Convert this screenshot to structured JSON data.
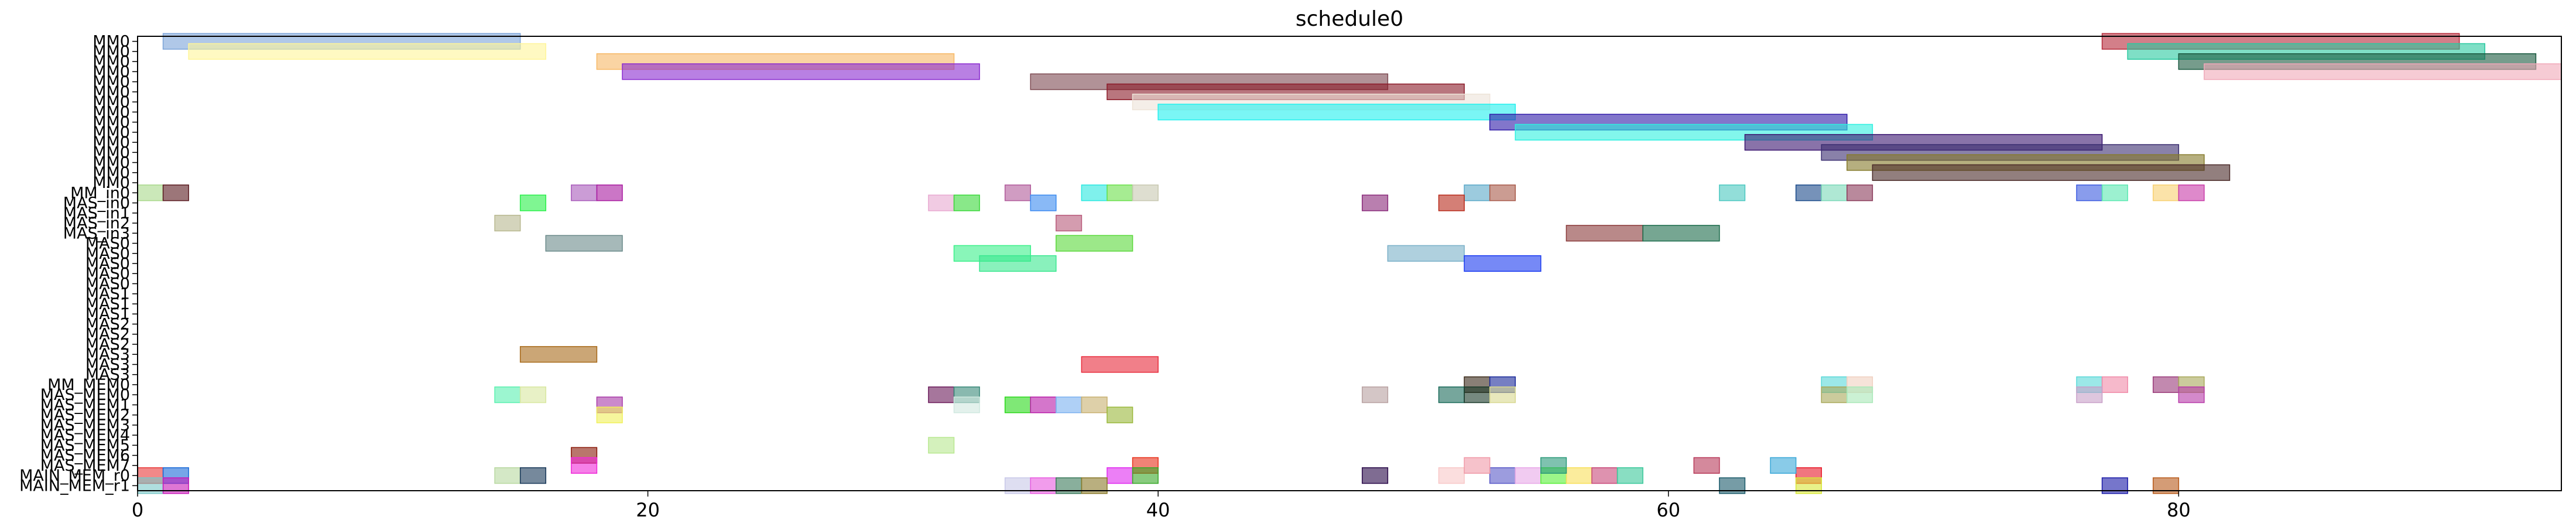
{
  "chart_data": {
    "type": "gantt",
    "title": "schedule0",
    "xlim": [
      0,
      95
    ],
    "xticks": [
      0,
      20,
      40,
      60,
      80
    ],
    "grid": false,
    "rows": [
      "MM0",
      "MM0",
      "MM0",
      "MM0",
      "MM0",
      "MM0",
      "MM0",
      "MM0",
      "MM0",
      "MM0",
      "MM0",
      "MM0",
      "MM0",
      "MM0",
      "MM0",
      "MM_in0",
      "MAS_in0",
      "MAS_in1",
      "MAS_in2",
      "MAS_in3",
      "MAS0",
      "MAS0",
      "MAS0",
      "MAS0",
      "MAS0",
      "MAS1",
      "MAS1",
      "MAS1",
      "MAS2",
      "MAS2",
      "MAS2",
      "MAS3",
      "MAS3",
      "MAS3",
      "MM_MEM0",
      "MAS_MEM0",
      "MAS_MEM1",
      "MAS_MEM2",
      "MAS_MEM3",
      "MAS_MEM4",
      "MAS_MEM5",
      "MAS_MEM6",
      "MAS_MEM7",
      "MAIN_MEM_r0",
      "MAIN_MEM_r1"
    ],
    "tasks": [
      {
        "row": 0,
        "start": 1,
        "end": 15,
        "color": "#7ba3d8"
      },
      {
        "row": 1,
        "start": 2,
        "end": 16,
        "color": "#fff59a"
      },
      {
        "row": 2,
        "start": 18,
        "end": 32,
        "color": "#f7b866"
      },
      {
        "row": 3,
        "start": 19,
        "end": 33,
        "color": "#8a2bd0"
      },
      {
        "row": 4,
        "start": 35,
        "end": 49,
        "color": "#7d4a52"
      },
      {
        "row": 5,
        "start": 38,
        "end": 52,
        "color": "#8b1a28"
      },
      {
        "row": 6,
        "start": 39,
        "end": 53,
        "color": "#ede3d8"
      },
      {
        "row": 7,
        "start": 40,
        "end": 54,
        "color": "#22f0ee"
      },
      {
        "row": 8,
        "start": 53,
        "end": 67,
        "color": "#2f1aa8"
      },
      {
        "row": 9,
        "start": 54,
        "end": 68,
        "color": "#2ef0e0"
      },
      {
        "row": 10,
        "start": 63,
        "end": 77,
        "color": "#3a1670"
      },
      {
        "row": 11,
        "start": 66,
        "end": 80,
        "color": "#3a2d70"
      },
      {
        "row": 12,
        "start": 67,
        "end": 81,
        "color": "#857a2a"
      },
      {
        "row": 13,
        "start": 68,
        "end": 82,
        "color": "#4a2a28"
      },
      {
        "row": 0,
        "start": 77,
        "end": 91,
        "color": "#b52a3a"
      },
      {
        "row": 1,
        "start": 78,
        "end": 92,
        "color": "#2ac9a0"
      },
      {
        "row": 2,
        "start": 80,
        "end": 94,
        "color": "#1a5a40"
      },
      {
        "row": 3,
        "start": 81,
        "end": 95,
        "color": "#f0a8b8"
      },
      {
        "row": 15,
        "start": 0,
        "end": 1,
        "color": "#a8d88a"
      },
      {
        "row": 15,
        "start": 1,
        "end": 2,
        "color": "#5a1a20"
      },
      {
        "row": 15,
        "start": 17,
        "end": 18,
        "color": "#a85aba"
      },
      {
        "row": 15,
        "start": 18,
        "end": 19,
        "color": "#a81aa0"
      },
      {
        "row": 15,
        "start": 34,
        "end": 35,
        "color": "#b05a9a"
      },
      {
        "row": 15,
        "start": 37,
        "end": 38,
        "color": "#2ae8e0"
      },
      {
        "row": 15,
        "start": 38,
        "end": 39,
        "color": "#6ae04a"
      },
      {
        "row": 15,
        "start": 39,
        "end": 40,
        "color": "#c8c8b0"
      },
      {
        "row": 15,
        "start": 52,
        "end": 53,
        "color": "#5aa8c8"
      },
      {
        "row": 15,
        "start": 53,
        "end": 54,
        "color": "#a85a4a"
      },
      {
        "row": 15,
        "start": 62,
        "end": 63,
        "color": "#4ac8c0"
      },
      {
        "row": 15,
        "start": 65,
        "end": 66,
        "color": "#1a4a8a"
      },
      {
        "row": 15,
        "start": 66,
        "end": 67,
        "color": "#7ad8b8"
      },
      {
        "row": 15,
        "start": 67,
        "end": 68,
        "color": "#8a3a5a"
      },
      {
        "row": 15,
        "start": 76,
        "end": 77,
        "color": "#3a5ae0"
      },
      {
        "row": 15,
        "start": 77,
        "end": 78,
        "color": "#5ae8b0"
      },
      {
        "row": 15,
        "start": 79,
        "end": 80,
        "color": "#f8d070"
      },
      {
        "row": 15,
        "start": 80,
        "end": 81,
        "color": "#c83aa8"
      },
      {
        "row": 16,
        "start": 15,
        "end": 16,
        "color": "#2af04a"
      },
      {
        "row": 16,
        "start": 31,
        "end": 32,
        "color": "#e8a8d0"
      },
      {
        "row": 16,
        "start": 32,
        "end": 33,
        "color": "#3ad83a"
      },
      {
        "row": 16,
        "start": 35,
        "end": 36,
        "color": "#3a8af0"
      },
      {
        "row": 16,
        "start": 48,
        "end": 49,
        "color": "#8a2a7a"
      },
      {
        "row": 16,
        "start": 51,
        "end": 52,
        "color": "#b82a1a"
      },
      {
        "row": 18,
        "start": 14,
        "end": 15,
        "color": "#b8b890"
      },
      {
        "row": 18,
        "start": 36,
        "end": 37,
        "color": "#b85a7a"
      },
      {
        "row": 19,
        "start": 56,
        "end": 59,
        "color": "#8a3a3a"
      },
      {
        "row": 19,
        "start": 59,
        "end": 62,
        "color": "#1a6a4a"
      },
      {
        "row": 20,
        "start": 16,
        "end": 19,
        "color": "#6a8a8a"
      },
      {
        "row": 20,
        "start": 36,
        "end": 39,
        "color": "#5ad83a"
      },
      {
        "row": 21,
        "start": 32,
        "end": 35,
        "color": "#3af08a"
      },
      {
        "row": 21,
        "start": 49,
        "end": 52,
        "color": "#7ab0c8"
      },
      {
        "row": 22,
        "start": 33,
        "end": 36,
        "color": "#3ae890"
      },
      {
        "row": 22,
        "start": 52,
        "end": 55,
        "color": "#1a3af0"
      },
      {
        "row": 31,
        "start": 15,
        "end": 18,
        "color": "#a86a1a"
      },
      {
        "row": 32,
        "start": 37,
        "end": 40,
        "color": "#e82a3a"
      },
      {
        "row": 34,
        "start": 52,
        "end": 53,
        "color": "#3a2a1a"
      },
      {
        "row": 34,
        "start": 53,
        "end": 54,
        "color": "#1a2a9a"
      },
      {
        "row": 34,
        "start": 66,
        "end": 67,
        "color": "#5ad8d8"
      },
      {
        "row": 34,
        "start": 67,
        "end": 68,
        "color": "#f0d0c0"
      },
      {
        "row": 34,
        "start": 76,
        "end": 77,
        "color": "#5ad8d8"
      },
      {
        "row": 34,
        "start": 77,
        "end": 78,
        "color": "#f08aa8"
      },
      {
        "row": 34,
        "start": 79,
        "end": 80,
        "color": "#9a3a7a"
      },
      {
        "row": 34,
        "start": 80,
        "end": 81,
        "color": "#a8a85a"
      },
      {
        "row": 35,
        "start": 14,
        "end": 15,
        "color": "#5af0b0"
      },
      {
        "row": 35,
        "start": 15,
        "end": 16,
        "color": "#d8e8a0"
      },
      {
        "row": 35,
        "start": 31,
        "end": 32,
        "color": "#6a1a5a"
      },
      {
        "row": 35,
        "start": 32,
        "end": 33,
        "color": "#3a8a7a"
      },
      {
        "row": 35,
        "start": 48,
        "end": 49,
        "color": "#b8a0a0"
      },
      {
        "row": 35,
        "start": 51,
        "end": 52,
        "color": "#1a6a5a"
      },
      {
        "row": 35,
        "start": 52,
        "end": 53,
        "color": "#1a3a2a"
      },
      {
        "row": 35,
        "start": 53,
        "end": 54,
        "color": "#d8d890"
      },
      {
        "row": 35,
        "start": 66,
        "end": 67,
        "color": "#a8a85a"
      },
      {
        "row": 35,
        "start": 67,
        "end": 68,
        "color": "#a8e8b8"
      },
      {
        "row": 35,
        "start": 76,
        "end": 77,
        "color": "#c8a0c8"
      },
      {
        "row": 35,
        "start": 80,
        "end": 81,
        "color": "#b83aa8"
      },
      {
        "row": 36,
        "start": 18,
        "end": 19,
        "color": "#a83aa8"
      },
      {
        "row": 36,
        "start": 32,
        "end": 33,
        "color": "#d0e8e0"
      },
      {
        "row": 36,
        "start": 34,
        "end": 35,
        "color": "#2ad81a"
      },
      {
        "row": 36,
        "start": 35,
        "end": 36,
        "color": "#b81aa8"
      },
      {
        "row": 36,
        "start": 36,
        "end": 37,
        "color": "#7ab0f0"
      },
      {
        "row": 36,
        "start": 37,
        "end": 38,
        "color": "#c8b070"
      },
      {
        "row": 37,
        "start": 18,
        "end": 19,
        "color": "#f0f05a"
      },
      {
        "row": 37,
        "start": 38,
        "end": 39,
        "color": "#9ab83a"
      },
      {
        "row": 40,
        "start": 31,
        "end": 32,
        "color": "#b8e890"
      },
      {
        "row": 41,
        "start": 17,
        "end": 18,
        "color": "#8a1a0a"
      },
      {
        "row": 42,
        "start": 17,
        "end": 18,
        "color": "#f02ad8"
      },
      {
        "row": 42,
        "start": 39,
        "end": 40,
        "color": "#e8301a"
      },
      {
        "row": 43,
        "start": 0,
        "end": 1,
        "color": "#e83a3a"
      },
      {
        "row": 43,
        "start": 1,
        "end": 2,
        "color": "#1a6ad8"
      },
      {
        "row": 43,
        "start": 14,
        "end": 15,
        "color": "#b8d8a0"
      },
      {
        "row": 43,
        "start": 15,
        "end": 16,
        "color": "#1a3a5a"
      },
      {
        "row": 43,
        "start": 38,
        "end": 39,
        "color": "#e02af0"
      },
      {
        "row": 43,
        "start": 39,
        "end": 40,
        "color": "#3aa82a"
      },
      {
        "row": 43,
        "start": 48,
        "end": 49,
        "color": "#2a0a4a"
      },
      {
        "row": 43,
        "start": 51,
        "end": 52,
        "color": "#f8c8c8"
      },
      {
        "row": 43,
        "start": 53,
        "end": 54,
        "color": "#5a5ac8"
      },
      {
        "row": 43,
        "start": 54,
        "end": 55,
        "color": "#e8a8e8"
      },
      {
        "row": 43,
        "start": 55,
        "end": 56,
        "color": "#5af03a"
      },
      {
        "row": 43,
        "start": 56,
        "end": 57,
        "color": "#f8e05a"
      },
      {
        "row": 43,
        "start": 57,
        "end": 58,
        "color": "#c84a7a"
      },
      {
        "row": 43,
        "start": 58,
        "end": 59,
        "color": "#3ac89a"
      },
      {
        "row": 43,
        "start": 65,
        "end": 66,
        "color": "#e81a2a"
      },
      {
        "row": 42,
        "start": 55,
        "end": 56,
        "color": "#2a9a7a"
      },
      {
        "row": 42,
        "start": 61,
        "end": 62,
        "color": "#b83a5a"
      },
      {
        "row": 42,
        "start": 64,
        "end": 65,
        "color": "#3aa8d8"
      },
      {
        "row": 42,
        "start": 52,
        "end": 53,
        "color": "#f09aa8"
      },
      {
        "row": 44,
        "start": 0,
        "end": 1,
        "color": "#7ac8c8"
      },
      {
        "row": 44,
        "start": 1,
        "end": 2,
        "color": "#c81ab8"
      },
      {
        "row": 44,
        "start": 34,
        "end": 35,
        "color": "#c8c8e8"
      },
      {
        "row": 44,
        "start": 35,
        "end": 36,
        "color": "#e85ae0"
      },
      {
        "row": 44,
        "start": 36,
        "end": 37,
        "color": "#3a7a5a"
      },
      {
        "row": 44,
        "start": 37,
        "end": 38,
        "color": "#8a7a2a"
      },
      {
        "row": 44,
        "start": 62,
        "end": 63,
        "color": "#1a5a6a"
      },
      {
        "row": 44,
        "start": 65,
        "end": 66,
        "color": "#d8e83a"
      },
      {
        "row": 44,
        "start": 77,
        "end": 78,
        "color": "#1a1aa8"
      },
      {
        "row": 44,
        "start": 79,
        "end": 80,
        "color": "#b85a1a"
      }
    ]
  }
}
